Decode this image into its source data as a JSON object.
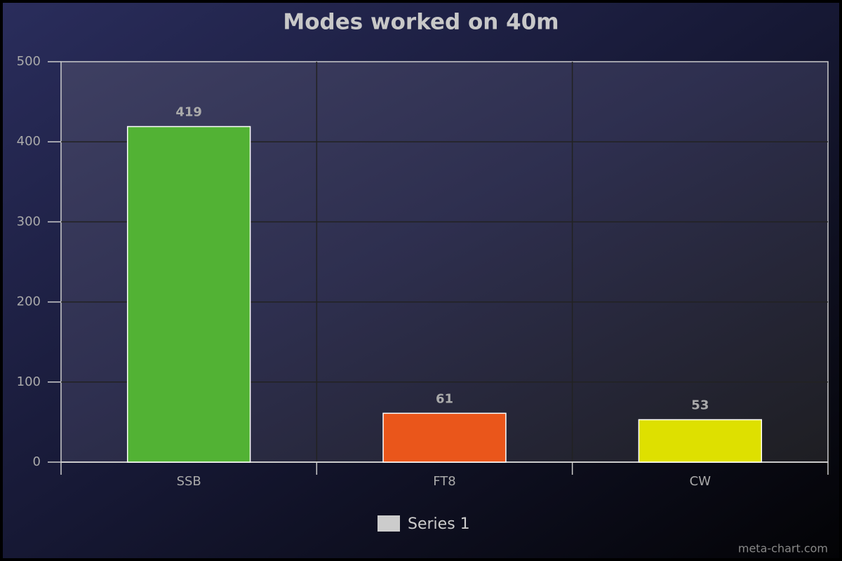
{
  "chart_data": {
    "type": "bar",
    "title": "Modes worked on 40m",
    "categories": [
      "SSB",
      "FT8",
      "CW"
    ],
    "series": [
      {
        "name": "Series 1",
        "color": "#cccccc",
        "values": [
          419,
          61,
          53
        ]
      }
    ],
    "bar_colors": [
      "#52b234",
      "#ea561b",
      "#dee000"
    ],
    "ylim": [
      0,
      500
    ],
    "yticks": [
      0,
      100,
      200,
      300,
      400,
      500
    ],
    "grid": true,
    "legend": "bottom",
    "watermark": "meta-chart.com"
  }
}
